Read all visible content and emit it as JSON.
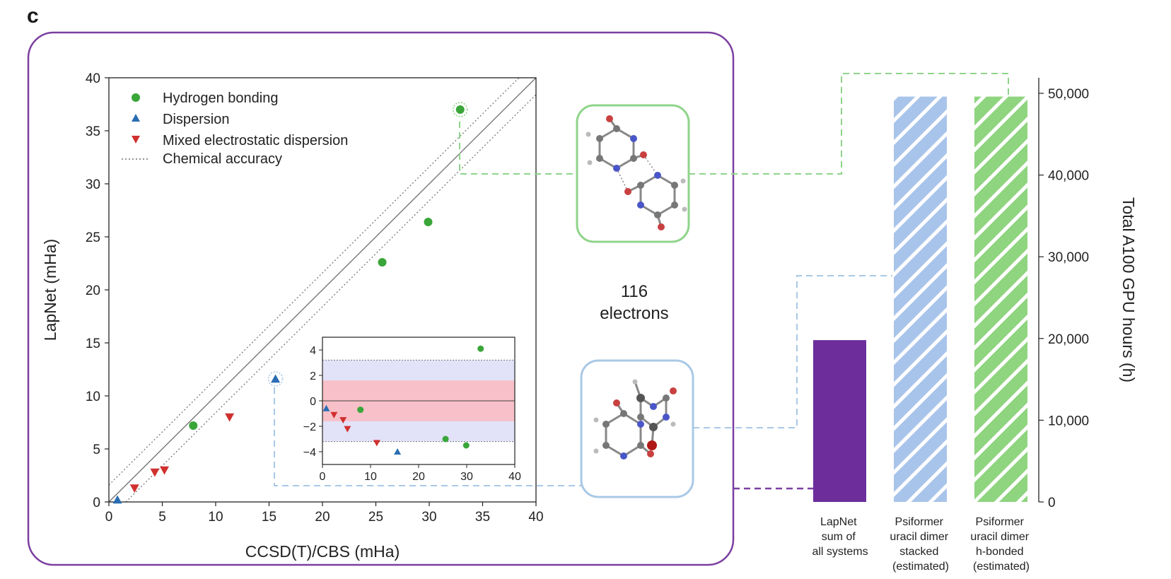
{
  "panel_label": "c",
  "molecule_label": {
    "line1": "116",
    "line2": "electrons"
  },
  "colors": {
    "hydrogen": "#3aa63a",
    "dispersion": "#2a6db3",
    "mixed": "#d0302e",
    "panel_border": "#7b3fa0",
    "lapnet_bar": "#6d2e9c",
    "stacked_bar": "#a9c4ea",
    "hbonded_bar": "#8fd47f",
    "green_box": "#8fd48a",
    "blue_box": "#a9c8e6",
    "band_red": "#f8c0c8",
    "band_blue": "#e2e2f8"
  },
  "chart_data": [
    {
      "id": "main-scatter",
      "type": "scatter",
      "xlabel": "CCSD(T)/CBS (mHa)",
      "ylabel": "LapNet (mHa)",
      "xlim": [
        0,
        40
      ],
      "ylim": [
        0,
        40
      ],
      "xticks": [
        0,
        5,
        10,
        15,
        20,
        25,
        30,
        35,
        40
      ],
      "yticks": [
        0,
        5,
        10,
        15,
        20,
        25,
        30,
        35,
        40
      ],
      "legend_position": "top-left",
      "reference_lines": {
        "identity": true,
        "chemical_accuracy_offset": 1.6
      },
      "series": [
        {
          "name": "Hydrogen bonding",
          "marker": "circle",
          "points": [
            [
              7.9,
              7.2
            ],
            [
              25.6,
              22.6
            ],
            [
              29.9,
              26.4
            ],
            [
              32.9,
              37.0
            ]
          ]
        },
        {
          "name": "Dispersion",
          "marker": "triangle-up",
          "points": [
            [
              0.8,
              0.2
            ],
            [
              15.6,
              11.6
            ]
          ]
        },
        {
          "name": "Mixed electrostatic dispersion",
          "marker": "triangle-down",
          "points": [
            [
              2.4,
              1.3
            ],
            [
              4.3,
              2.8
            ],
            [
              5.2,
              3.0
            ],
            [
              11.3,
              8.0
            ]
          ]
        }
      ],
      "legend_extra": "Chemical accuracy",
      "highlighted_points": [
        [
          32.9,
          37.0
        ],
        [
          15.6,
          11.6
        ]
      ]
    },
    {
      "id": "inset-residuals",
      "type": "scatter",
      "xlim": [
        0,
        40
      ],
      "ylim": [
        -5,
        5
      ],
      "xticks": [
        0,
        10,
        20,
        30,
        40
      ],
      "yticks": [
        -4,
        -2,
        0,
        2,
        4
      ],
      "bands": {
        "inner": 1.6,
        "outer": 3.2
      },
      "series": [
        {
          "name": "Hydrogen bonding",
          "marker": "circle",
          "points": [
            [
              7.9,
              -0.7
            ],
            [
              25.6,
              -3.0
            ],
            [
              29.9,
              -3.5
            ],
            [
              32.9,
              4.1
            ]
          ]
        },
        {
          "name": "Dispersion",
          "marker": "triangle-up",
          "points": [
            [
              0.8,
              -0.6
            ],
            [
              15.6,
              -4.0
            ]
          ]
        },
        {
          "name": "Mixed electrostatic dispersion",
          "marker": "triangle-down",
          "points": [
            [
              2.4,
              -1.1
            ],
            [
              4.3,
              -1.5
            ],
            [
              5.2,
              -2.2
            ],
            [
              11.3,
              -3.3
            ]
          ]
        }
      ]
    },
    {
      "id": "gpu-bars",
      "type": "bar",
      "ylabel": "Total A100 GPU hours (h)",
      "ylim": [
        0,
        50000
      ],
      "yticks": [
        0,
        10000,
        20000,
        30000,
        40000,
        50000
      ],
      "ytick_labels": [
        "0",
        "10,000",
        "20,000",
        "30,000",
        "40,000",
        "50,000"
      ],
      "y_axis_side": "right",
      "categories": [
        [
          "LapNet",
          "sum of",
          "all systems"
        ],
        [
          "Psiformer",
          "uracil dimer",
          "stacked",
          "(estimated)"
        ],
        [
          "Psiformer",
          "uracil dimer",
          "h-bonded",
          "(estimated)"
        ]
      ],
      "values": [
        19800,
        49600,
        49600
      ],
      "bar_styles": [
        "solid",
        "hatched",
        "hatched"
      ]
    }
  ]
}
